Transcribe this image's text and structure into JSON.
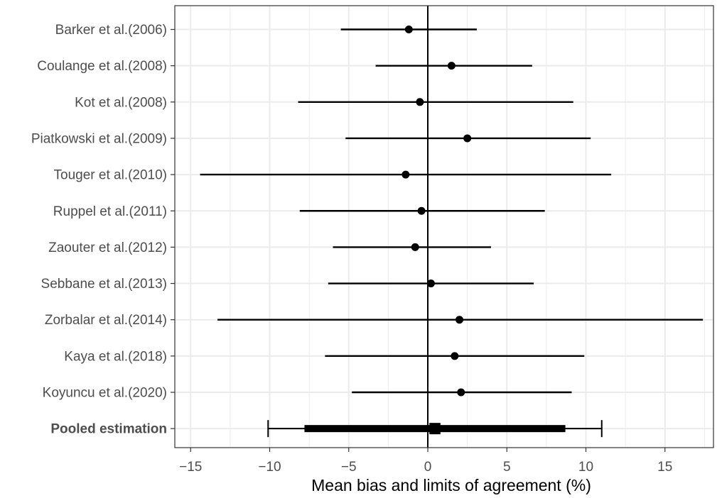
{
  "chart_data": {
    "type": "forest",
    "title": "",
    "xlabel": "Mean bias and limits of agreement (%)",
    "ylabel": "",
    "xlim": [
      -15.3,
      17.6
    ],
    "x_ticks": [
      -15,
      -10,
      -5,
      0,
      5,
      10,
      15
    ],
    "x_tick_labels": [
      "−15",
      "−10",
      "−5",
      "0",
      "5",
      "10",
      "15"
    ],
    "grid": true,
    "reference_line": 0,
    "studies": [
      {
        "label": "Barker et al.(2006)",
        "mean": -1.2,
        "lower": -5.5,
        "upper": 3.1
      },
      {
        "label": "Coulange et al.(2008)",
        "mean": 1.5,
        "lower": -3.3,
        "upper": 6.6
      },
      {
        "label": "Kot et al.(2008)",
        "mean": -0.5,
        "lower": -8.2,
        "upper": 9.2
      },
      {
        "label": "Piatkowski et al.(2009)",
        "mean": 2.5,
        "lower": -5.2,
        "upper": 10.3
      },
      {
        "label": "Touger et al.(2010)",
        "mean": -1.4,
        "lower": -14.4,
        "upper": 11.6
      },
      {
        "label": "Ruppel et al.(2011)",
        "mean": -0.4,
        "lower": -8.1,
        "upper": 7.4
      },
      {
        "label": "Zaouter et al.(2012)",
        "mean": -0.8,
        "lower": -6.0,
        "upper": 4.0
      },
      {
        "label": "Sebbane et al.(2013)",
        "mean": 0.2,
        "lower": -6.3,
        "upper": 6.7
      },
      {
        "label": "Zorbalar et al.(2014)",
        "mean": 2.0,
        "lower": -13.3,
        "upper": 17.4
      },
      {
        "label": "Kaya et al.(2018)",
        "mean": 1.7,
        "lower": -6.5,
        "upper": 9.9
      },
      {
        "label": "Koyuncu et al.(2020)",
        "mean": 2.1,
        "lower": -4.8,
        "upper": 9.1
      }
    ],
    "pooled": {
      "label": "Pooled estimation",
      "mean": 0.4,
      "mean_ci": [
        0.1,
        0.8
      ],
      "loa": [
        -7.8,
        8.7
      ],
      "loa_outer_ci": [
        -10.1,
        11.0
      ]
    },
    "colors": {
      "panel_border": "#333333",
      "gridline": "#ebebeb",
      "marks": "#000000",
      "label_text": "#4d4d4d"
    }
  }
}
